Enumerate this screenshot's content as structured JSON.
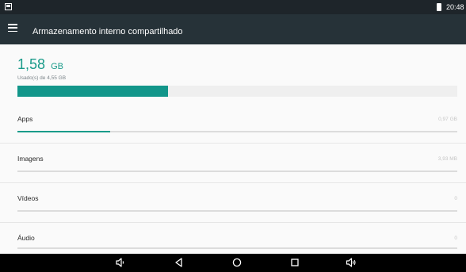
{
  "status_bar": {
    "time": "20:48",
    "icons": [
      "notification-icon",
      "battery-icon"
    ]
  },
  "app_bar": {
    "title": "Armazenamento interno compartilhado",
    "menu_icon": "menu-icon"
  },
  "summary": {
    "used_value": "1,58",
    "used_unit": "GB",
    "used_of_label": "Usado(s) de 4,55 GB",
    "used_fraction": 0.342,
    "bar_color": "#12968a"
  },
  "categories": [
    {
      "label": "Apps",
      "size": "0,97 GB",
      "fraction": 0.21
    },
    {
      "label": "Imagens",
      "size": "3,93 MB",
      "fraction": 0.0
    },
    {
      "label": "Vídeos",
      "size": "0",
      "fraction": 0.0
    },
    {
      "label": "Áudio",
      "size": "0",
      "fraction": 0.0
    }
  ],
  "nav_bar": {
    "buttons": [
      "volume-down-icon",
      "back-icon",
      "home-icon",
      "recents-icon",
      "volume-up-icon"
    ]
  },
  "colors": {
    "accent": "#1a9b8a",
    "app_bar": "#263238",
    "status_bar": "#1e252a",
    "nav_bar": "#000000"
  }
}
